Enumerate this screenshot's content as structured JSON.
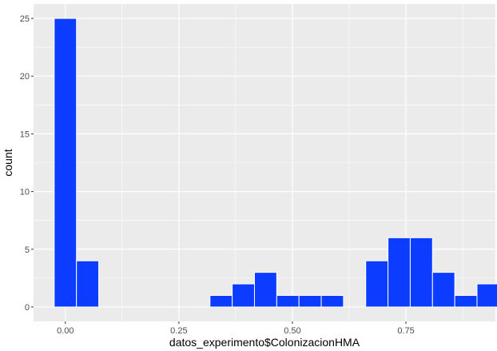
{
  "chart_data": {
    "type": "bar",
    "xlabel": "datos_experimento$ColonizacionHMA",
    "ylabel": "count",
    "xlim": [
      -0.07,
      0.947
    ],
    "ylim": [
      -1.25,
      26.25
    ],
    "x_ticks": [
      {
        "value": 0.0,
        "label": "0.00"
      },
      {
        "value": 0.25,
        "label": "0.25"
      },
      {
        "value": 0.5,
        "label": "0.50"
      },
      {
        "value": 0.75,
        "label": "0.75"
      }
    ],
    "y_ticks": [
      {
        "value": 0,
        "label": "0"
      },
      {
        "value": 5,
        "label": "5"
      },
      {
        "value": 10,
        "label": "10"
      },
      {
        "value": 15,
        "label": "15"
      },
      {
        "value": 20,
        "label": "20"
      },
      {
        "value": 25,
        "label": "25"
      }
    ],
    "bin_width": 0.049,
    "bins": [
      {
        "x": 0.0,
        "count": 25
      },
      {
        "x": 0.049,
        "count": 4
      },
      {
        "x": 0.343,
        "count": 1
      },
      {
        "x": 0.392,
        "count": 2
      },
      {
        "x": 0.441,
        "count": 3
      },
      {
        "x": 0.49,
        "count": 1
      },
      {
        "x": 0.539,
        "count": 1
      },
      {
        "x": 0.588,
        "count": 1
      },
      {
        "x": 0.686,
        "count": 4
      },
      {
        "x": 0.735,
        "count": 6
      },
      {
        "x": 0.784,
        "count": 6
      },
      {
        "x": 0.833,
        "count": 3
      },
      {
        "x": 0.882,
        "count": 1
      },
      {
        "x": 0.931,
        "count": 2
      }
    ],
    "grid": true,
    "bar_fill": "#0b3cff",
    "bar_outline": "#ffffff",
    "panel_background": "#ebebeb",
    "gridline_color": "#ffffff"
  }
}
